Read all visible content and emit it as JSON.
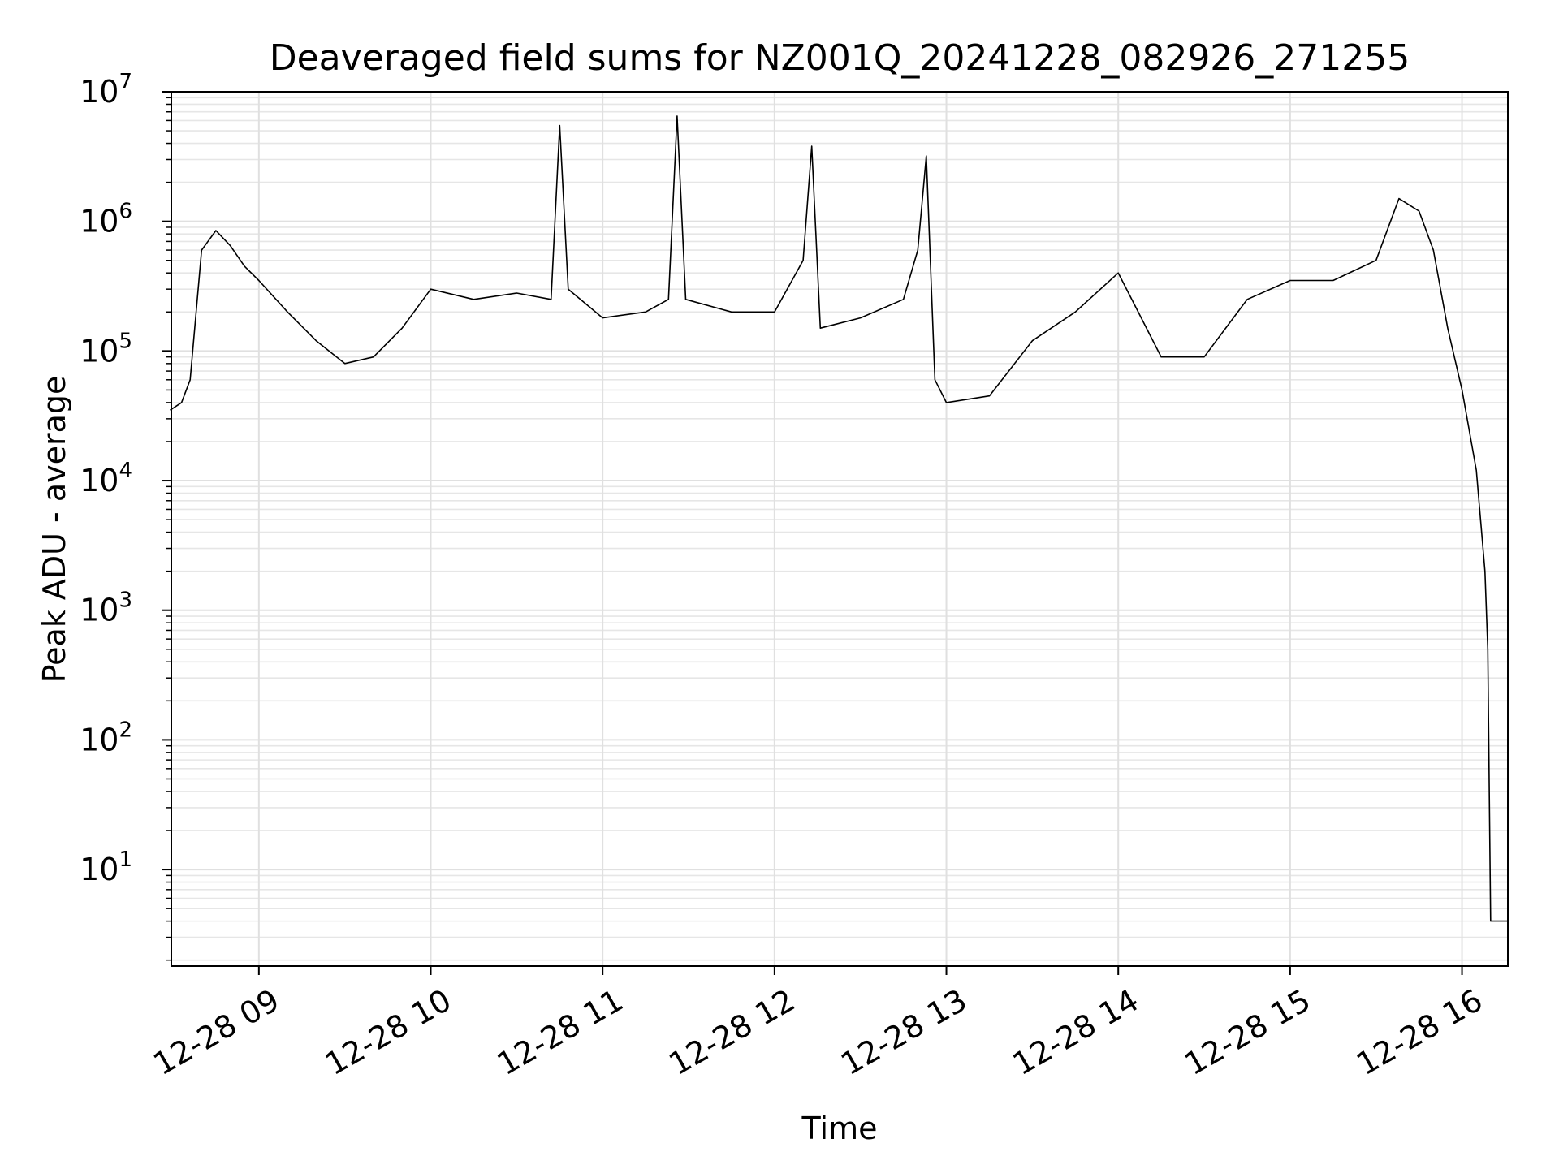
{
  "chart_data": {
    "type": "line",
    "title": "Deaveraged field sums for NZ001Q_20241228_082926_271255",
    "xlabel": "Time",
    "ylabel": "Peak ADU - average",
    "y_scale": "log",
    "x_range": [
      "2024-12-28 08:29:26",
      "2024-12-28 16:16:00"
    ],
    "ylim": [
      1.8,
      10000000
    ],
    "grid": "on (major and minor)",
    "line_color": "#000000",
    "x_ticks": [
      {
        "label": "12-28 09",
        "value": "2024-12-28 09:00"
      },
      {
        "label": "12-28 10",
        "value": "2024-12-28 10:00"
      },
      {
        "label": "12-28 11",
        "value": "2024-12-28 11:00"
      },
      {
        "label": "12-28 12",
        "value": "2024-12-28 12:00"
      },
      {
        "label": "12-28 13",
        "value": "2024-12-28 13:00"
      },
      {
        "label": "12-28 14",
        "value": "2024-12-28 14:00"
      },
      {
        "label": "12-28 15",
        "value": "2024-12-28 15:00"
      },
      {
        "label": "12-28 16",
        "value": "2024-12-28 16:00"
      }
    ],
    "y_ticks": [
      {
        "base": "10",
        "exp": "1",
        "value": 10
      },
      {
        "base": "10",
        "exp": "2",
        "value": 100
      },
      {
        "base": "10",
        "exp": "3",
        "value": 1000
      },
      {
        "base": "10",
        "exp": "4",
        "value": 10000
      },
      {
        "base": "10",
        "exp": "5",
        "value": 100000
      },
      {
        "base": "10",
        "exp": "6",
        "value": 1000000
      },
      {
        "base": "10",
        "exp": "7",
        "value": 10000000
      }
    ],
    "series": [
      {
        "x": [
          "2024-12-28 08:29",
          "2024-12-28 08:33",
          "2024-12-28 08:36",
          "2024-12-28 08:40",
          "2024-12-28 08:45",
          "2024-12-28 08:50",
          "2024-12-28 08:55",
          "2024-12-28 09:00",
          "2024-12-28 09:10",
          "2024-12-28 09:20",
          "2024-12-28 09:30",
          "2024-12-28 09:40",
          "2024-12-28 09:50",
          "2024-12-28 10:00",
          "2024-12-28 10:15",
          "2024-12-28 10:30",
          "2024-12-28 10:42",
          "2024-12-28 10:45",
          "2024-12-28 10:48",
          "2024-12-28 11:00",
          "2024-12-28 11:15",
          "2024-12-28 11:23",
          "2024-12-28 11:26",
          "2024-12-28 11:29",
          "2024-12-28 11:45",
          "2024-12-28 12:00",
          "2024-12-28 12:10",
          "2024-12-28 12:13",
          "2024-12-28 12:16",
          "2024-12-28 12:30",
          "2024-12-28 12:45",
          "2024-12-28 12:50",
          "2024-12-28 12:53",
          "2024-12-28 12:56",
          "2024-12-28 13:00",
          "2024-12-28 13:15",
          "2024-12-28 13:30",
          "2024-12-28 13:45",
          "2024-12-28 14:00",
          "2024-12-28 14:15",
          "2024-12-28 14:30",
          "2024-12-28 14:45",
          "2024-12-28 15:00",
          "2024-12-28 15:15",
          "2024-12-28 15:30",
          "2024-12-28 15:38",
          "2024-12-28 15:45",
          "2024-12-28 15:50",
          "2024-12-28 15:55",
          "2024-12-28 16:00",
          "2024-12-28 16:05",
          "2024-12-28 16:08",
          "2024-12-28 16:09",
          "2024-12-28 16:10",
          "2024-12-28 16:16"
        ],
        "values": [
          35000,
          40000,
          60000,
          600000,
          850000,
          650000,
          450000,
          350000,
          200000,
          120000,
          80000,
          90000,
          150000,
          300000,
          250000,
          280000,
          250000,
          5500000,
          300000,
          180000,
          200000,
          250000,
          6500000,
          250000,
          200000,
          200000,
          500000,
          3800000,
          150000,
          180000,
          250000,
          600000,
          3200000,
          60000,
          40000,
          45000,
          120000,
          200000,
          400000,
          90000,
          90000,
          250000,
          350000,
          350000,
          500000,
          1500000,
          1200000,
          600000,
          150000,
          50000,
          12000,
          2000,
          500,
          4,
          4
        ]
      }
    ]
  }
}
